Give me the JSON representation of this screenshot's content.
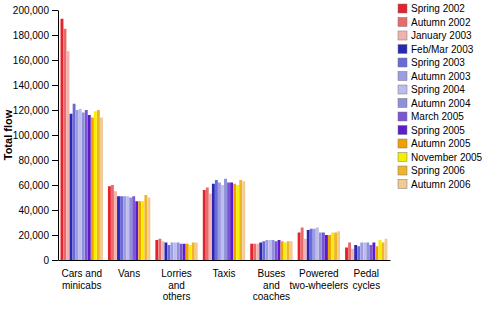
{
  "chart_data": {
    "type": "bar",
    "y_label": "Total flow",
    "categories": [
      "Cars and minicabs",
      "Vans",
      "Lorries and others",
      "Taxis",
      "Buses and coaches",
      "Powered two-wheelers",
      "Pedal cycles"
    ],
    "series": [
      {
        "name": "Spring 2002",
        "color": "#e3222b",
        "values": [
          193000,
          59000,
          16000,
          56000,
          13000,
          22000,
          10000
        ]
      },
      {
        "name": "Autumn 2002",
        "color": "#e86a6a",
        "values": [
          185000,
          60000,
          17000,
          58000,
          13000,
          26000,
          14000
        ]
      },
      {
        "name": "January 2003",
        "color": "#f2b3b0",
        "values": [
          167000,
          55000,
          15000,
          53000,
          13000,
          17000,
          9000
        ]
      },
      {
        "name": "Feb/Mar 2003",
        "color": "#2828b4",
        "values": [
          117000,
          51000,
          14000,
          61000,
          14000,
          24000,
          12000
        ]
      },
      {
        "name": "Spring 2003",
        "color": "#6a6ad8",
        "values": [
          125000,
          51000,
          12000,
          64000,
          15000,
          25000,
          11000
        ]
      },
      {
        "name": "Autumn 2003",
        "color": "#9c9ce2",
        "values": [
          120000,
          51000,
          14000,
          62000,
          16000,
          25000,
          14000
        ]
      },
      {
        "name": "Spring 2004",
        "color": "#bcbcee",
        "values": [
          121000,
          51000,
          14000,
          60000,
          16000,
          26000,
          14000
        ]
      },
      {
        "name": "Autumn 2004",
        "color": "#9090da",
        "values": [
          118000,
          50000,
          14000,
          65000,
          16000,
          22000,
          14000
        ]
      },
      {
        "name": "March 2005",
        "color": "#7a56d2",
        "values": [
          120000,
          51000,
          13000,
          62000,
          15000,
          22000,
          12000
        ]
      },
      {
        "name": "Spring 2005",
        "color": "#5a1ccc",
        "values": [
          116000,
          47000,
          13000,
          62000,
          16000,
          20000,
          14000
        ]
      },
      {
        "name": "Autumn 2005",
        "color": "#f2a000",
        "values": [
          114000,
          47000,
          13000,
          61000,
          15000,
          20000,
          11000
        ]
      },
      {
        "name": "November 2005",
        "color": "#f6ee00",
        "values": [
          119000,
          47000,
          12000,
          60000,
          14000,
          22000,
          16000
        ]
      },
      {
        "name": "Spring 2006",
        "color": "#f0b428",
        "values": [
          120000,
          52000,
          14000,
          64000,
          15000,
          22000,
          14000
        ]
      },
      {
        "name": "Autumn 2006",
        "color": "#f2ca94",
        "values": [
          114000,
          50000,
          14000,
          63000,
          15000,
          23000,
          17000
        ]
      }
    ],
    "ylim": [
      0,
      200000
    ],
    "yticks": [
      0,
      {
        "value": 20000,
        "label": "20,000"
      },
      {
        "value": 40000,
        "label": "40,000"
      },
      {
        "value": 60000,
        "label": "60,000"
      },
      {
        "value": 80000,
        "label": "80,000"
      },
      {
        "value": 100000,
        "label": "100,000"
      },
      {
        "value": 120000,
        "label": "120,000"
      },
      {
        "value": 140000,
        "label": "140,000"
      },
      {
        "value": 160000,
        "label": "160,000"
      },
      {
        "value": 180000,
        "label": "180,000"
      },
      {
        "value": 200000,
        "label": "200,000"
      }
    ],
    "grid": false,
    "legend": "right"
  }
}
